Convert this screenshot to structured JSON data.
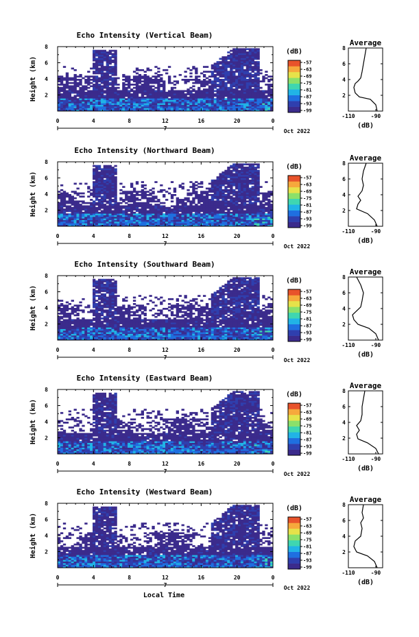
{
  "common": {
    "date_label": "Oct 2022",
    "day_label": "7",
    "height_label": "Height (km)",
    "unit_label": "(dB)",
    "average_title": "Average",
    "xlabel_bottom": "Local Time",
    "colormap": [
      "#3b2b8c",
      "#2f3fae",
      "#1f6fe0",
      "#21b3e6",
      "#3fd6b0",
      "#8be06a",
      "#e6e24a",
      "#f6a83c",
      "#e8532b"
    ]
  },
  "chart_data": [
    {
      "type": "heatmap",
      "title": "Echo Intensity (Vertical Beam)",
      "xlabel": "",
      "ylabel": "Height (km)",
      "xlim": [
        0,
        24
      ],
      "ylim": [
        0,
        8
      ],
      "x_ticks": [
        "0",
        "4",
        "8",
        "12",
        "16",
        "20",
        "0"
      ],
      "y_ticks": [
        "2",
        "4",
        "6",
        "8"
      ],
      "colorbar": {
        "label": "(dB)",
        "ticks": [
          "-57",
          "-63",
          "-69",
          "-75",
          "-81",
          "-87",
          "-93",
          "-99"
        ]
      },
      "average_profile": {
        "title": "Average",
        "xlabel": "(dB)",
        "xlim": [
          -110,
          -85
        ],
        "x_ticks": [
          "-110",
          "-90"
        ],
        "y_ticks": [
          "2",
          "4",
          "6",
          "8"
        ],
        "points": [
          [
            -89,
            0
          ],
          [
            -90,
            0.8
          ],
          [
            -94,
            1.5
          ],
          [
            -102,
            1.8
          ],
          [
            -105,
            2.3
          ],
          [
            -106,
            3.0
          ],
          [
            -105,
            3.5
          ],
          [
            -103,
            3.8
          ],
          [
            -101,
            4.2
          ],
          [
            -100,
            5.0
          ],
          [
            -99,
            6.0
          ],
          [
            -98,
            7.0
          ],
          [
            -97,
            8.0
          ]
        ]
      }
    },
    {
      "type": "heatmap",
      "title": "Echo Intensity (Northward Beam)",
      "xlabel": "",
      "ylabel": "Height (km)",
      "xlim": [
        0,
        24
      ],
      "ylim": [
        0,
        8
      ],
      "x_ticks": [
        "0",
        "4",
        "8",
        "12",
        "16",
        "20",
        "0"
      ],
      "y_ticks": [
        "2",
        "4",
        "6",
        "8"
      ],
      "colorbar": {
        "label": "(dB)",
        "ticks": [
          "-57",
          "-63",
          "-69",
          "-75",
          "-81",
          "-87",
          "-93",
          "-99"
        ]
      },
      "average_profile": {
        "title": "Average",
        "xlabel": "(dB)",
        "xlim": [
          -110,
          -85
        ],
        "x_ticks": [
          "-110",
          "-90"
        ],
        "y_ticks": [
          "2",
          "4",
          "6",
          "8"
        ],
        "points": [
          [
            -89,
            0
          ],
          [
            -91,
            0.8
          ],
          [
            -96,
            1.6
          ],
          [
            -104,
            2.2
          ],
          [
            -103,
            2.8
          ],
          [
            -101,
            3.3
          ],
          [
            -103,
            3.8
          ],
          [
            -100,
            4.5
          ],
          [
            -99,
            5.2
          ],
          [
            -100,
            6.0
          ],
          [
            -99,
            7.0
          ],
          [
            -97,
            8.0
          ]
        ]
      }
    },
    {
      "type": "heatmap",
      "title": "Echo Intensity (Southward Beam)",
      "xlabel": "",
      "ylabel": "Height (km)",
      "xlim": [
        0,
        24
      ],
      "ylim": [
        0,
        8
      ],
      "x_ticks": [
        "0",
        "4",
        "8",
        "12",
        "16",
        "20",
        "0"
      ],
      "y_ticks": [
        "2",
        "4",
        "6",
        "8"
      ],
      "colorbar": {
        "label": "(dB)",
        "ticks": [
          "-57",
          "-63",
          "-69",
          "-75",
          "-81",
          "-87",
          "-93",
          "-99"
        ]
      },
      "average_profile": {
        "title": "Average",
        "xlabel": "(dB)",
        "xlim": [
          -110,
          -85
        ],
        "x_ticks": [
          "-110",
          "-90"
        ],
        "y_ticks": [
          "2",
          "4",
          "6",
          "8"
        ],
        "points": [
          [
            -88,
            0
          ],
          [
            -90,
            0.8
          ],
          [
            -95,
            1.5
          ],
          [
            -103,
            2.0
          ],
          [
            -106,
            2.6
          ],
          [
            -107,
            3.2
          ],
          [
            -104,
            3.7
          ],
          [
            -101,
            4.2
          ],
          [
            -100,
            5.0
          ],
          [
            -99,
            6.0
          ],
          [
            -101,
            7.0
          ],
          [
            -104,
            8.0
          ]
        ]
      }
    },
    {
      "type": "heatmap",
      "title": "Echo Intensity (Eastward Beam)",
      "xlabel": "",
      "ylabel": "Height (km)",
      "xlim": [
        0,
        24
      ],
      "ylim": [
        0,
        8
      ],
      "x_ticks": [
        "0",
        "4",
        "8",
        "12",
        "16",
        "20",
        "0"
      ],
      "y_ticks": [
        "2",
        "4",
        "6",
        "8"
      ],
      "colorbar": {
        "label": "(dB)",
        "ticks": [
          "-57",
          "-63",
          "-69",
          "-75",
          "-81",
          "-87",
          "-93",
          "-99"
        ]
      },
      "average_profile": {
        "title": "Average",
        "xlabel": "(dB)",
        "xlim": [
          -110,
          -85
        ],
        "x_ticks": [
          "-110",
          "-90"
        ],
        "y_ticks": [
          "2",
          "4",
          "6",
          "8"
        ],
        "points": [
          [
            -88,
            0
          ],
          [
            -90,
            0.7
          ],
          [
            -96,
            1.4
          ],
          [
            -103,
            1.9
          ],
          [
            -104,
            2.5
          ],
          [
            -102,
            3.0
          ],
          [
            -104,
            3.6
          ],
          [
            -101,
            4.2
          ],
          [
            -100,
            5.0
          ],
          [
            -100,
            6.0
          ],
          [
            -99,
            7.0
          ],
          [
            -98,
            8.0
          ]
        ]
      }
    },
    {
      "type": "heatmap",
      "title": "Echo Intensity (Westward Beam)",
      "xlabel": "Local Time",
      "ylabel": "Height (km)",
      "xlim": [
        0,
        24
      ],
      "ylim": [
        0,
        8
      ],
      "x_ticks": [
        "0",
        "4",
        "8",
        "12",
        "16",
        "20",
        "0"
      ],
      "y_ticks": [
        "2",
        "4",
        "6",
        "8"
      ],
      "colorbar": {
        "label": "(dB)",
        "ticks": [
          "-57",
          "-63",
          "-69",
          "-75",
          "-81",
          "-87",
          "-93",
          "-99"
        ]
      },
      "average_profile": {
        "title": "Average",
        "xlabel": "(dB)",
        "xlim": [
          -110,
          -85
        ],
        "x_ticks": [
          "-110",
          "-90"
        ],
        "y_ticks": [
          "2",
          "4",
          "6",
          "8"
        ],
        "points": [
          [
            -89,
            0
          ],
          [
            -91,
            0.8
          ],
          [
            -96,
            1.5
          ],
          [
            -104,
            2.0
          ],
          [
            -106,
            2.7
          ],
          [
            -105,
            3.4
          ],
          [
            -101,
            4.0
          ],
          [
            -100,
            5.0
          ],
          [
            -101,
            5.7
          ],
          [
            -99,
            6.3
          ],
          [
            -100,
            7.0
          ],
          [
            -99,
            8.0
          ]
        ]
      }
    }
  ]
}
